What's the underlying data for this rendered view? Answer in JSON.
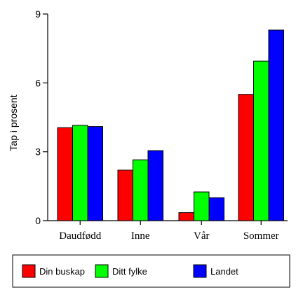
{
  "chart_data": {
    "type": "bar",
    "categories": [
      "Daudfødd",
      "Inne",
      "Vår",
      "Sommer"
    ],
    "series": [
      {
        "name": "Din buskap",
        "color": "#ff0000",
        "values": [
          4.05,
          2.2,
          0.35,
          5.5
        ]
      },
      {
        "name": "Ditt fylke",
        "color": "#00ff00",
        "values": [
          4.15,
          2.65,
          1.25,
          6.95
        ]
      },
      {
        "name": "Landet",
        "color": "#0000ff",
        "values": [
          4.1,
          3.05,
          1.0,
          8.3
        ]
      }
    ],
    "title": "",
    "xlabel": "",
    "ylabel": "Tap i prosent",
    "ylim": [
      0,
      9
    ],
    "yticks": [
      0,
      3,
      6,
      9
    ],
    "grid": false,
    "legend_position": "bottom"
  }
}
